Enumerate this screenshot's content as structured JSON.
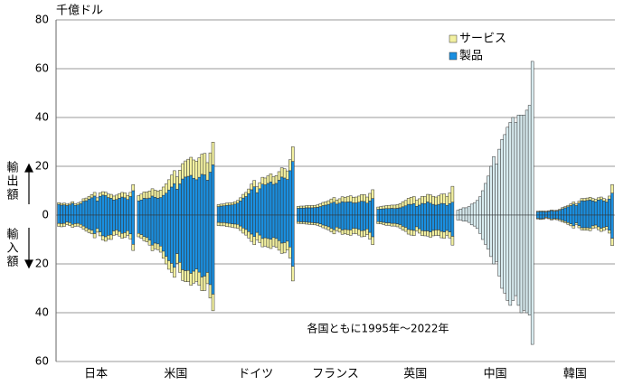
{
  "chart_data": {
    "type": "bar",
    "y_label": "千億ドル",
    "export_label": "輸出額",
    "import_label": "輸入額",
    "annotation": "各国ともに1995年～2022年",
    "ylim": [
      -60,
      80
    ],
    "yticks": [
      80,
      60,
      40,
      20,
      0,
      {
        "value": -20,
        "label": "20"
      },
      {
        "value": -40,
        "label": "40"
      },
      {
        "value": -60,
        "label": "60"
      }
    ],
    "grid": true,
    "legend": "top-right",
    "series": [
      {
        "name": "製品",
        "color": "#1a8fe0"
      },
      {
        "name": "サービス",
        "color": "#f2f0a0"
      }
    ],
    "total_color": "#d8ecf0",
    "categories": [
      "日本",
      "米国",
      "ドイツ",
      "フランス",
      "英国",
      "中国",
      "韓国"
    ],
    "groups": [
      {
        "exports": [
          [
            4.4,
            4.1,
            4.2,
            3.9,
            4.2,
            4.8,
            4.0,
            4.2,
            4.7,
            5.7,
            5.9,
            6.5,
            7.1,
            7.8,
            5.8,
            7.7,
            8.2,
            8.0,
            7.2,
            6.9,
            6.2,
            6.4,
            6.9,
            7.4,
            7.1,
            6.4,
            7.6,
            10.0
          ],
          [
            0.7,
            0.7,
            0.7,
            0.6,
            0.6,
            0.7,
            0.6,
            0.7,
            0.8,
            1.0,
            1.1,
            1.2,
            1.3,
            1.5,
            1.3,
            1.4,
            1.4,
            1.4,
            1.4,
            1.6,
            1.6,
            1.8,
            1.9,
            1.9,
            2.0,
            1.6,
            1.7,
            2.5
          ]
        ],
        "imports": [
          [
            -3.4,
            -3.5,
            -3.4,
            -2.8,
            -3.1,
            -3.8,
            -3.5,
            -3.4,
            -3.8,
            -4.5,
            -5.2,
            -5.8,
            -6.2,
            -7.6,
            -5.5,
            -6.9,
            -8.5,
            -8.9,
            -8.3,
            -8.1,
            -6.5,
            -6.1,
            -6.7,
            -7.5,
            -7.2,
            -6.4,
            -7.7,
            -12.0
          ],
          [
            -1.2,
            -1.3,
            -1.2,
            -1.1,
            -1.2,
            -1.2,
            -1.1,
            -1.1,
            -1.1,
            -1.3,
            -1.4,
            -1.4,
            -1.5,
            -1.7,
            -1.5,
            -1.6,
            -1.7,
            -1.8,
            -1.6,
            -1.9,
            -1.8,
            -1.8,
            -1.9,
            -2.0,
            -2.0,
            -1.9,
            -2.1,
            -2.5
          ]
        ]
      },
      {
        "exports": [
          [
            5.8,
            6.2,
            6.9,
            6.8,
            7.0,
            7.8,
            7.3,
            6.9,
            7.2,
            8.1,
            9.0,
            10.3,
            11.5,
            12.9,
            10.6,
            12.8,
            14.8,
            15.6,
            15.9,
            16.3,
            15.1,
            14.5,
            15.5,
            16.7,
            16.5,
            14.3,
            17.6,
            20.6
          ],
          [
            2.2,
            2.4,
            2.6,
            2.7,
            2.9,
            3.0,
            2.9,
            3.0,
            3.0,
            3.4,
            3.8,
            4.2,
            4.9,
            5.3,
            5.1,
            5.6,
            6.3,
            6.6,
            7.0,
            7.4,
            7.5,
            7.6,
            8.0,
            8.3,
            8.8,
            7.2,
            7.9,
            9.3
          ]
        ],
        "imports": [
          [
            -7.5,
            -8.0,
            -8.8,
            -9.2,
            -10.3,
            -12.3,
            -11.5,
            -11.8,
            -12.7,
            -14.8,
            -16.9,
            -18.7,
            -19.8,
            -21.4,
            -15.8,
            -19.4,
            -22.4,
            -22.8,
            -22.7,
            -23.9,
            -23.0,
            -22.1,
            -23.4,
            -25.4,
            -25.0,
            -23.5,
            -28.5,
            -32.4
          ],
          [
            -1.4,
            -1.5,
            -1.7,
            -1.8,
            -2.0,
            -2.3,
            -2.3,
            -2.4,
            -2.5,
            -2.9,
            -3.1,
            -3.5,
            -3.7,
            -4.1,
            -3.9,
            -4.1,
            -4.4,
            -4.5,
            -4.6,
            -4.9,
            -4.9,
            -5.1,
            -5.4,
            -5.6,
            -5.9,
            -4.6,
            -5.5,
            -6.8
          ]
        ]
      },
      {
        "exports": [
          [
            3.5,
            3.7,
            3.8,
            4.0,
            4.1,
            4.2,
            4.5,
            4.9,
            5.8,
            7.0,
            7.6,
            8.8,
            10.4,
            11.6,
            9.2,
            10.8,
            12.7,
            12.4,
            13.0,
            13.6,
            12.6,
            13.0,
            14.3,
            15.6,
            15.2,
            14.6,
            18.2,
            22.0
          ],
          [
            0.8,
            0.8,
            0.8,
            0.9,
            0.9,
            0.9,
            1.0,
            1.1,
            1.3,
            1.5,
            1.7,
            1.9,
            2.3,
            2.6,
            2.4,
            2.5,
            2.8,
            2.8,
            3.1,
            3.3,
            3.1,
            3.2,
            3.5,
            3.8,
            3.8,
            3.5,
            4.5,
            6.0
          ]
        ],
        "imports": [
          [
            -3.0,
            -3.1,
            -3.1,
            -3.3,
            -3.4,
            -3.6,
            -3.7,
            -3.8,
            -4.5,
            -5.3,
            -5.9,
            -6.8,
            -7.8,
            -8.8,
            -7.1,
            -8.2,
            -9.6,
            -9.3,
            -9.6,
            -9.9,
            -9.2,
            -9.6,
            -10.5,
            -11.5,
            -11.3,
            -10.7,
            -13.1,
            -21.0
          ],
          [
            -1.3,
            -1.3,
            -1.3,
            -1.4,
            -1.4,
            -1.4,
            -1.5,
            -1.6,
            -1.8,
            -2.1,
            -2.3,
            -2.6,
            -3.0,
            -3.3,
            -3.0,
            -3.1,
            -3.4,
            -3.4,
            -3.6,
            -3.8,
            -3.5,
            -3.6,
            -3.9,
            -4.2,
            -4.2,
            -3.6,
            -4.5,
            -6.0
          ]
        ]
      },
      {
        "exports": [
          [
            2.8,
            2.9,
            2.9,
            3.0,
            3.0,
            3.0,
            3.1,
            3.2,
            3.5,
            3.9,
            4.1,
            4.4,
            4.9,
            5.3,
            4.5,
            4.9,
            5.5,
            5.3,
            5.4,
            5.5,
            5.0,
            5.0,
            5.3,
            5.7,
            5.6,
            4.9,
            5.8,
            6.8
          ],
          [
            0.8,
            0.8,
            0.8,
            0.9,
            0.9,
            0.9,
            0.9,
            1.0,
            1.1,
            1.3,
            1.4,
            1.5,
            1.7,
            1.9,
            1.7,
            1.8,
            2.0,
            2.0,
            2.2,
            2.4,
            2.3,
            2.4,
            2.5,
            2.7,
            2.8,
            2.5,
            3.1,
            3.6
          ]
        ],
        "imports": [
          [
            -2.7,
            -2.8,
            -2.8,
            -2.9,
            -3.0,
            -3.1,
            -3.2,
            -3.3,
            -3.6,
            -4.1,
            -4.4,
            -4.8,
            -5.4,
            -6.0,
            -4.9,
            -5.4,
            -6.1,
            -5.9,
            -6.0,
            -6.1,
            -5.4,
            -5.5,
            -5.9,
            -6.4,
            -6.3,
            -5.7,
            -7.1,
            -8.9
          ],
          [
            -0.7,
            -0.7,
            -0.7,
            -0.8,
            -0.8,
            -0.8,
            -0.8,
            -0.9,
            -1.0,
            -1.1,
            -1.2,
            -1.3,
            -1.5,
            -1.7,
            -1.5,
            -1.6,
            -1.8,
            -1.8,
            -2.0,
            -2.2,
            -2.1,
            -2.2,
            -2.3,
            -2.5,
            -2.5,
            -2.3,
            -2.8,
            -3.2
          ]
        ]
      },
      {
        "exports": [
          [
            2.4,
            2.5,
            2.6,
            2.7,
            2.7,
            2.8,
            2.7,
            2.8,
            3.0,
            3.4,
            3.8,
            4.4,
            4.4,
            4.7,
            3.6,
            4.1,
            4.8,
            4.7,
            5.4,
            4.9,
            4.4,
            4.1,
            4.4,
            4.8,
            4.7,
            4.0,
            4.7,
            5.3
          ],
          [
            0.9,
            1.0,
            1.1,
            1.2,
            1.3,
            1.3,
            1.4,
            1.5,
            1.7,
            2.1,
            2.2,
            2.5,
            2.9,
            2.9,
            2.5,
            2.6,
            2.9,
            2.9,
            3.1,
            3.4,
            3.3,
            3.3,
            3.5,
            3.8,
            4.0,
            3.7,
            4.4,
            6.5
          ]
        ],
        "imports": [
          [
            -2.7,
            -2.8,
            -3.0,
            -3.2,
            -3.2,
            -3.4,
            -3.4,
            -3.6,
            -3.9,
            -4.6,
            -5.0,
            -5.9,
            -6.1,
            -6.3,
            -4.8,
            -5.6,
            -6.4,
            -6.5,
            -6.5,
            -6.9,
            -6.3,
            -6.1,
            -6.1,
            -6.7,
            -6.9,
            -6.3,
            -6.9,
            -8.7
          ],
          [
            -0.8,
            -0.8,
            -0.9,
            -1.0,
            -1.0,
            -1.1,
            -1.1,
            -1.2,
            -1.4,
            -1.6,
            -1.7,
            -1.9,
            -2.1,
            -2.1,
            -1.8,
            -1.8,
            -2.0,
            -2.0,
            -2.1,
            -2.2,
            -2.2,
            -2.2,
            -2.3,
            -2.6,
            -2.6,
            -2.0,
            -2.5,
            -3.6
          ]
        ]
      },
      {
        "exports": [
          [
            2,
            2.5,
            3,
            3,
            3.5,
            4.5,
            5,
            6,
            7.5,
            10,
            13,
            16,
            20,
            24,
            21,
            27,
            31,
            33,
            36,
            38,
            40,
            38,
            41,
            41,
            41,
            43,
            45,
            63
          ]
        ],
        "imports": [
          [
            -2,
            -2,
            -2.5,
            -2.5,
            -3,
            -4,
            -4.5,
            -5.5,
            -7.5,
            -10,
            -12,
            -14,
            -17,
            -20,
            -19,
            -25,
            -30,
            -32,
            -35,
            -37,
            -35,
            -33,
            -37,
            -40,
            -39,
            -40,
            -41,
            -53
          ]
        ]
      },
      {
        "exports": [
          [
            1.3,
            1.4,
            1.4,
            1.3,
            1.5,
            1.8,
            1.6,
            1.7,
            2.0,
            2.6,
            3.0,
            3.4,
            3.9,
            4.5,
            3.9,
            4.9,
            5.9,
            5.8,
            6.0,
            6.2,
            5.8,
            5.5,
            6.2,
            6.4,
            5.8,
            5.4,
            6.6,
            9.0
          ],
          [
            0.3,
            0.3,
            0.3,
            0.3,
            0.3,
            0.3,
            0.3,
            0.3,
            0.4,
            0.5,
            0.5,
            0.6,
            0.7,
            0.9,
            0.7,
            0.8,
            0.9,
            1.0,
            1.0,
            1.1,
            1.0,
            1.0,
            0.9,
            1.0,
            1.0,
            0.9,
            1.2,
            3.5
          ]
        ],
        "imports": [
          [
            -1.3,
            -1.5,
            -1.4,
            -0.9,
            -1.2,
            -1.6,
            -1.4,
            -1.5,
            -1.8,
            -2.2,
            -2.6,
            -3.1,
            -3.6,
            -4.4,
            -3.2,
            -4.3,
            -5.2,
            -5.2,
            -5.2,
            -5.3,
            -4.4,
            -4.1,
            -4.8,
            -5.4,
            -5.0,
            -4.7,
            -6.2,
            -9.5
          ],
          [
            -0.3,
            -0.3,
            -0.3,
            -0.3,
            -0.3,
            -0.4,
            -0.4,
            -0.4,
            -0.5,
            -0.6,
            -0.6,
            -0.7,
            -0.8,
            -0.9,
            -0.7,
            -0.9,
            -0.9,
            -1.0,
            -1.0,
            -1.1,
            -1.1,
            -1.1,
            -1.2,
            -1.3,
            -1.3,
            -1.0,
            -1.2,
            -3.0
          ]
        ]
      }
    ]
  }
}
